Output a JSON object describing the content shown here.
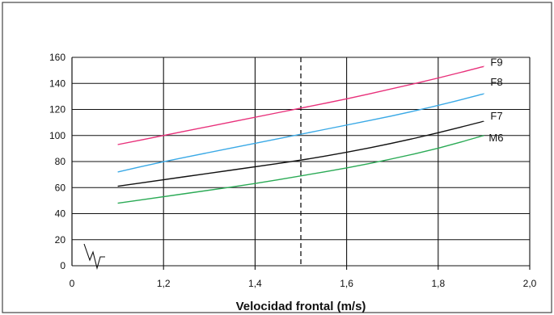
{
  "chart_data": {
    "type": "line",
    "xlabel": "Velocidad frontal (m/s)",
    "ylabel": "",
    "xlim": [
      1.0,
      2.0
    ],
    "ylim": [
      0,
      160
    ],
    "x_origin_label": "0",
    "x_ticks": [
      1.2,
      1.4,
      1.6,
      1.8,
      2.0
    ],
    "x_tick_labels": [
      "1,2",
      "1,4",
      "1,6",
      "1,8",
      "2,0"
    ],
    "y_ticks": [
      0,
      20,
      40,
      60,
      80,
      100,
      120,
      140,
      160
    ],
    "y_tick_labels": [
      "0",
      "20",
      "40",
      "60",
      "80",
      "100",
      "120",
      "140",
      "160"
    ],
    "reference_line_x": 1.5,
    "grid": true,
    "axis_break": true,
    "series": [
      {
        "name": "F9",
        "color": "#e8307a",
        "x": [
          1.1,
          1.2,
          1.3,
          1.4,
          1.5,
          1.6,
          1.7,
          1.8,
          1.9
        ],
        "values": [
          93,
          100,
          107,
          114,
          121,
          128,
          136,
          144,
          153
        ]
      },
      {
        "name": "F8",
        "color": "#3aa9e6",
        "x": [
          1.1,
          1.2,
          1.3,
          1.4,
          1.5,
          1.6,
          1.7,
          1.8,
          1.9
        ],
        "values": [
          72,
          80,
          87,
          94,
          101,
          108,
          115,
          123,
          132
        ]
      },
      {
        "name": "F7",
        "color": "#111111",
        "x": [
          1.1,
          1.2,
          1.3,
          1.4,
          1.5,
          1.6,
          1.7,
          1.8,
          1.9
        ],
        "values": [
          61,
          66,
          71,
          76,
          81,
          87,
          94,
          102,
          111
        ]
      },
      {
        "name": "M6",
        "color": "#2aaa55",
        "x": [
          1.1,
          1.2,
          1.3,
          1.4,
          1.5,
          1.6,
          1.7,
          1.8,
          1.9
        ],
        "values": [
          48,
          53,
          58,
          63,
          69,
          75,
          82,
          90,
          100
        ]
      }
    ]
  }
}
